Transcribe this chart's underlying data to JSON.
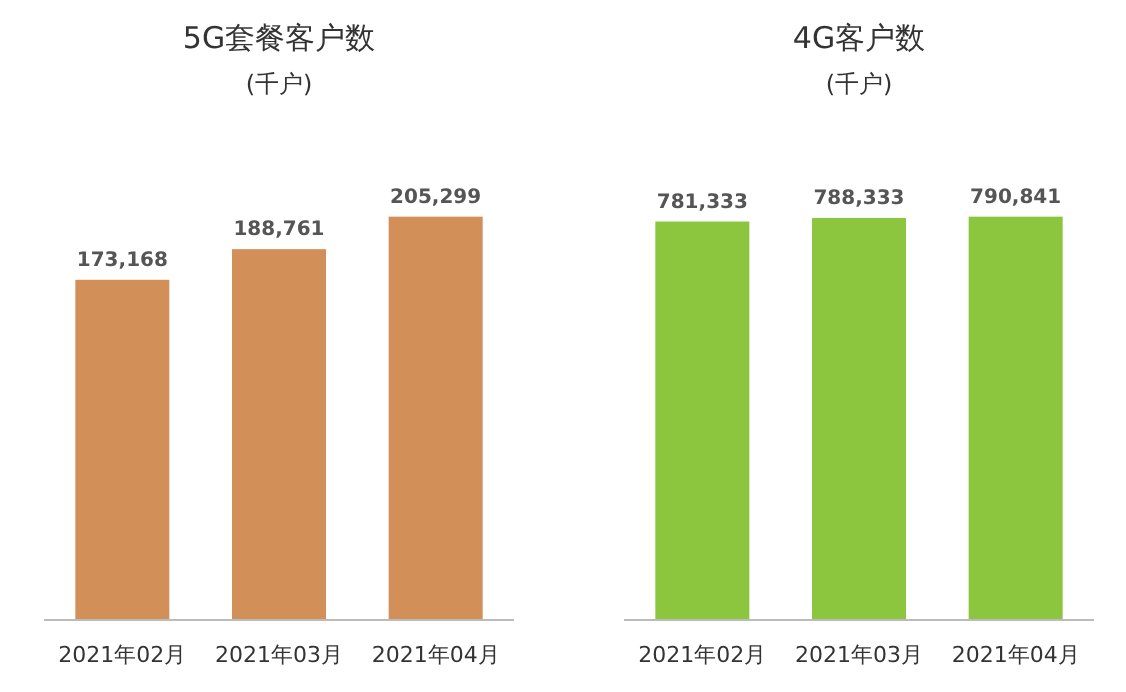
{
  "chart_data": [
    {
      "type": "bar",
      "title": "5G套餐客户数",
      "subtitle": "(千户)",
      "categories": [
        "2021年02月",
        "2021年03月",
        "2021年04月"
      ],
      "values": [
        173168,
        188761,
        205299
      ],
      "value_labels": [
        "173,168",
        "188,761",
        "205,299"
      ],
      "color": "#d38f58"
    },
    {
      "type": "bar",
      "title": "4G客户数",
      "subtitle": "(千户)",
      "categories": [
        "2021年02月",
        "2021年03月",
        "2021年04月"
      ],
      "values": [
        781333,
        788333,
        790841
      ],
      "value_labels": [
        "781,333",
        "788,333",
        "790,841"
      ],
      "color": "#8cc63f"
    }
  ]
}
